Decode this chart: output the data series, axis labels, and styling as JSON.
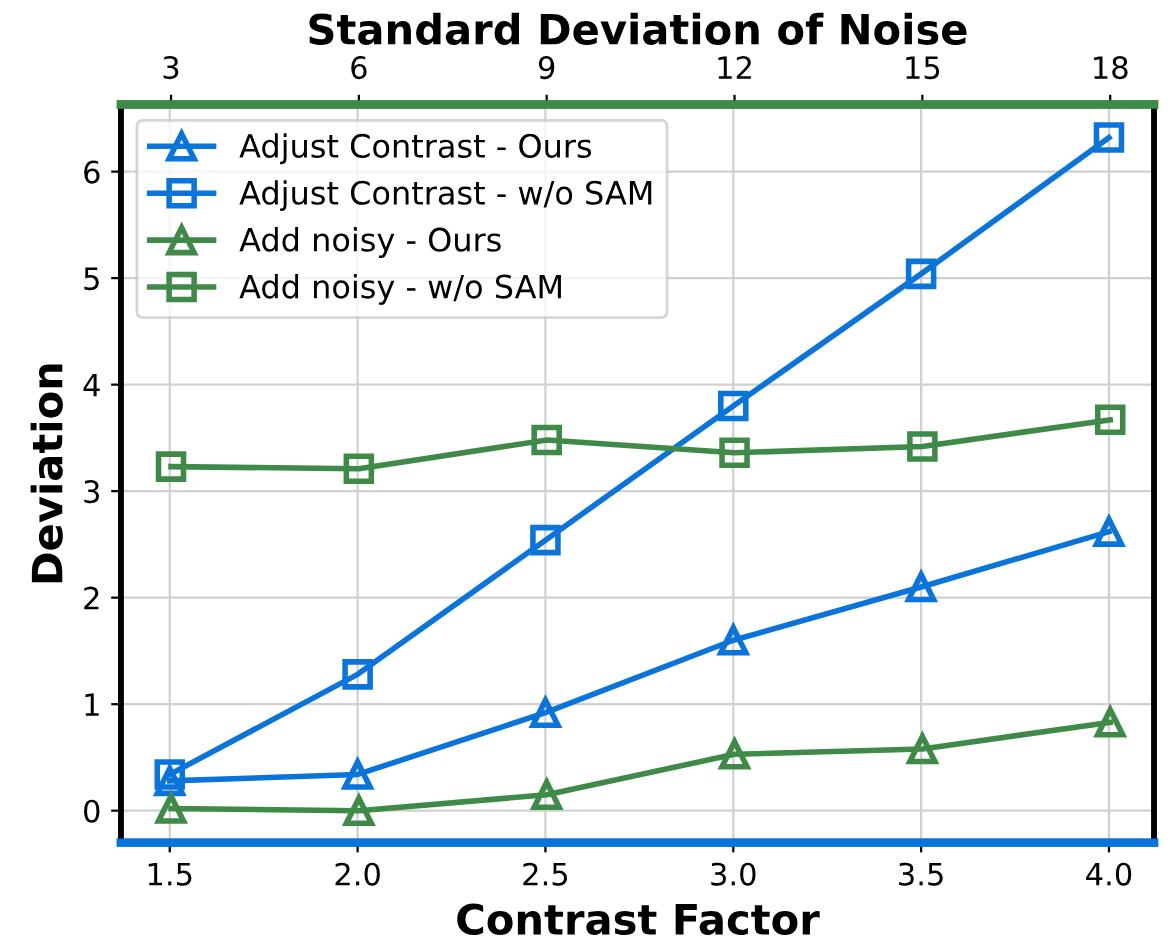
{
  "chart_data": {
    "type": "line",
    "xlabel": "Contrast Factor",
    "x2label": "Standard Deviation of Noise",
    "ylabel": "Deviation",
    "xlim": [
      1.37,
      4.12
    ],
    "xticks": [
      {
        "value": 1.5,
        "label": "1.5"
      },
      {
        "value": 2.0,
        "label": "2.0"
      },
      {
        "value": 2.5,
        "label": "2.5"
      },
      {
        "value": 3.0,
        "label": "3.0"
      },
      {
        "value": 3.5,
        "label": "3.5"
      },
      {
        "value": 4.0,
        "label": "4.0"
      }
    ],
    "x2lim": [
      2.2,
      18.7
    ],
    "x2ticks": [
      3,
      6,
      9,
      12,
      15,
      18
    ],
    "ylim": [
      -0.3,
      6.63
    ],
    "yticks": [
      0,
      1,
      2,
      3,
      4,
      5,
      6
    ],
    "grid": true,
    "legend": "top left",
    "line_style": "solid",
    "series": [
      {
        "name": "Adjust Contrast - Ours",
        "color": "#0a74da",
        "marker": "triangle",
        "x": [
          1.5,
          2.0,
          2.5,
          3.0,
          3.5,
          4.0
        ],
        "values": [
          0.28,
          0.34,
          0.92,
          1.6,
          2.1,
          2.62
        ]
      },
      {
        "name": "Adjust Contrast - w/o SAM",
        "color": "#0a74da",
        "marker": "square",
        "x": [
          1.5,
          2.0,
          2.5,
          3.0,
          3.5,
          4.0
        ],
        "values": [
          0.34,
          1.28,
          2.54,
          3.8,
          5.04,
          6.32
        ]
      },
      {
        "name": "Add noisy - Ours",
        "color": "#3f8a48",
        "marker": "triangle",
        "axis": "x2",
        "x": [
          3,
          6,
          9,
          12,
          15,
          18
        ],
        "values": [
          0.02,
          0.0,
          0.15,
          0.53,
          0.58,
          0.83
        ]
      },
      {
        "name": "Add noisy - w/o SAM",
        "color": "#3f8a48",
        "marker": "square",
        "axis": "x2",
        "x": [
          3,
          6,
          9,
          12,
          15,
          18
        ],
        "values": [
          3.23,
          3.21,
          3.48,
          3.36,
          3.42,
          3.67
        ]
      }
    ]
  }
}
